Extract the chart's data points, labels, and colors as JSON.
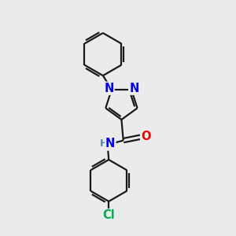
{
  "bg_color": "#ebebeb",
  "bond_color": "#1a1a1a",
  "bond_lw": 1.6,
  "atom_colors": {
    "N": "#0000ee",
    "O": "#ee0000",
    "Cl": "#00aa44",
    "H": "#5a8a9a"
  },
  "font_size": 10.5
}
